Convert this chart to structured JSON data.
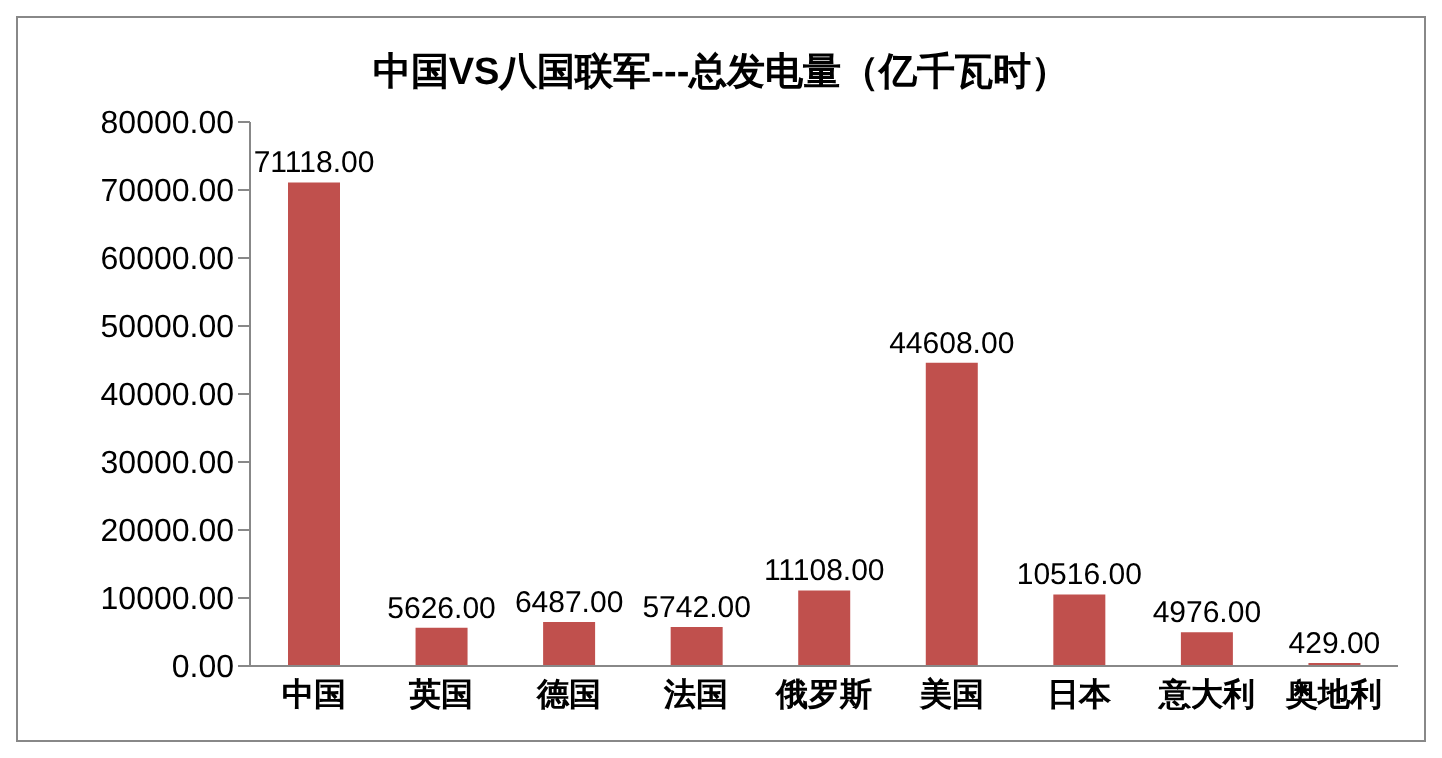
{
  "chart_data": {
    "type": "bar",
    "title": "中国VS八国联军---总发电量（亿千瓦时）",
    "categories": [
      "中国",
      "英国",
      "德国",
      "法国",
      "俄罗斯",
      "美国",
      "日本",
      "意大利",
      "奥地利"
    ],
    "values": [
      71118,
      5626,
      6487,
      5742,
      11108,
      44608,
      10516,
      4976,
      429
    ],
    "value_labels": [
      "71118.00",
      "5626.00",
      "6487.00",
      "5742.00",
      "11108.00",
      "44608.00",
      "10516.00",
      "4976.00",
      "429.00"
    ],
    "color": "#c0504d",
    "ylim": [
      0,
      80000
    ],
    "yticks": [
      {
        "value": 0,
        "label": "0.00"
      },
      {
        "value": 10000,
        "label": "10000.00"
      },
      {
        "value": 20000,
        "label": "20000.00"
      },
      {
        "value": 30000,
        "label": "30000.00"
      },
      {
        "value": 40000,
        "label": "40000.00"
      },
      {
        "value": 50000,
        "label": "50000.00"
      },
      {
        "value": 60000,
        "label": "60000.00"
      },
      {
        "value": 70000,
        "label": "70000.00"
      },
      {
        "value": 80000,
        "label": "80000.00"
      }
    ],
    "grid": false,
    "legend": false
  }
}
